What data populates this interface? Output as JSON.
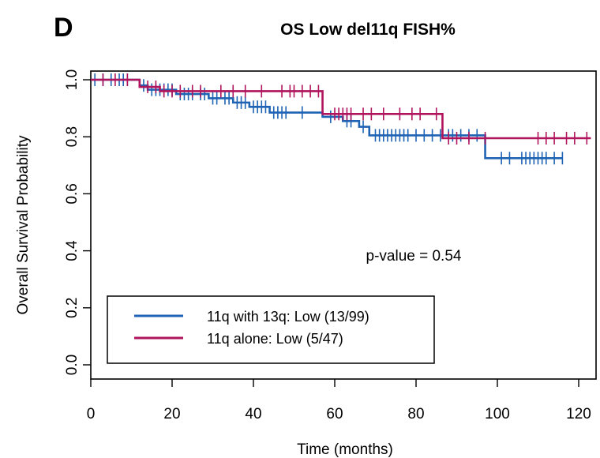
{
  "panel_letter": "D",
  "chart_data": {
    "type": "line",
    "subtype": "kaplan-meier",
    "title": "OS Low del11q FISH%",
    "xlabel": "Time (months)",
    "ylabel": "Overall Survival Probability",
    "xlim": [
      0,
      123
    ],
    "ylim": [
      0,
      1.0
    ],
    "xticks": [
      0,
      20,
      40,
      60,
      80,
      100,
      120
    ],
    "yticks": [
      0.0,
      0.2,
      0.4,
      0.6,
      0.8,
      1.0
    ],
    "xtick_labels": [
      "0",
      "20",
      "40",
      "60",
      "80",
      "100",
      "120"
    ],
    "ytick_labels": [
      "0.0",
      "0.2",
      "0.4",
      "0.6",
      "0.8",
      "1.0"
    ],
    "grid": false,
    "legend_position": "bottom-left",
    "annotation": "p-value = 0.54",
    "series": [
      {
        "name": "11q with 13q: Low (13/99)",
        "color": "#1f63b4",
        "steps": [
          [
            0,
            1.0
          ],
          [
            12,
            0.98
          ],
          [
            14,
            0.965
          ],
          [
            21,
            0.95
          ],
          [
            29,
            0.935
          ],
          [
            35,
            0.92
          ],
          [
            39,
            0.905
          ],
          [
            44,
            0.885
          ],
          [
            57,
            0.87
          ],
          [
            62,
            0.855
          ],
          [
            66,
            0.835
          ],
          [
            68.5,
            0.805
          ],
          [
            97,
            0.725
          ],
          [
            116,
            0.725
          ]
        ],
        "censor_times": [
          1,
          3,
          5,
          7,
          8,
          9,
          13,
          15,
          16,
          17,
          18,
          19,
          20,
          22,
          23,
          24,
          25,
          27,
          28,
          30,
          31,
          33,
          34,
          36,
          37,
          38,
          40,
          41,
          42,
          43,
          45,
          46,
          47,
          48,
          52,
          59,
          63,
          64,
          67,
          70,
          71,
          72,
          73,
          74,
          75,
          76,
          77,
          78,
          80,
          82,
          84,
          86,
          88,
          89,
          91,
          93,
          95,
          101,
          103,
          106,
          107,
          108,
          109,
          110,
          111,
          112,
          114,
          116
        ]
      },
      {
        "name": "11q alone: Low (5/47)",
        "color": "#b0145c",
        "steps": [
          [
            0,
            1.0
          ],
          [
            12,
            0.975
          ],
          [
            17,
            0.96
          ],
          [
            57,
            0.88
          ],
          [
            86.5,
            0.795
          ],
          [
            123,
            0.795
          ]
        ],
        "censor_times": [
          3,
          6,
          9,
          14,
          16,
          18,
          20,
          22,
          25,
          27,
          32,
          35,
          38,
          42,
          47,
          49,
          50,
          52,
          54,
          56,
          60,
          61,
          62,
          63,
          64,
          67,
          69,
          72,
          76,
          79,
          81,
          85,
          88,
          90,
          93,
          97,
          110,
          112,
          114,
          117,
          119,
          122
        ]
      }
    ]
  }
}
